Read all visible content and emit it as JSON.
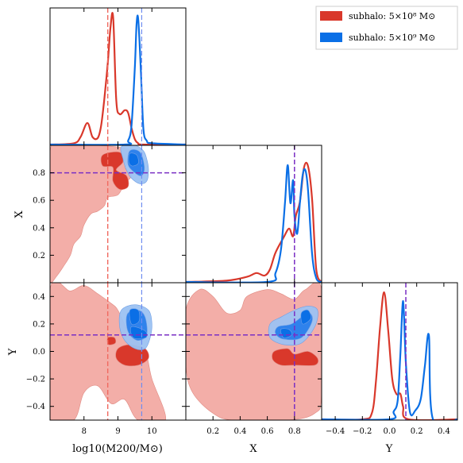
{
  "colors": {
    "red": "#d9382b",
    "red_light": "#f2aaa3",
    "red_dash": "#f06a60",
    "blue": "#0a6fe6",
    "blue_mid": "#2f82ec",
    "blue_light": "#9cc2f2",
    "blue_dash": "#6f8df0",
    "purple": "#7a2fc4"
  },
  "chart_data": {
    "type": "corner",
    "parameters": [
      {
        "key": "logM",
        "label": "log10(M200/M⊙)",
        "range": [
          7.0,
          11.0
        ],
        "ticks": [
          8,
          9,
          10
        ],
        "tick_labels": [
          "8",
          "9",
          "10"
        ]
      },
      {
        "key": "X",
        "label": "X",
        "range": [
          0.0,
          1.0
        ],
        "ticks": [
          0.2,
          0.4,
          0.6,
          0.8
        ],
        "tick_labels": [
          "0.2",
          "0.4",
          "0.6",
          "0.8"
        ]
      },
      {
        "key": "Y",
        "label": "Y",
        "range": [
          -0.5,
          0.5
        ],
        "ticks": [
          -0.4,
          -0.2,
          0.0,
          0.2,
          0.4
        ],
        "tick_labels": [
          "−0.4",
          "−0.2",
          "0.0",
          "0.2",
          "0.4"
        ]
      }
    ],
    "legend": {
      "placement": "top-right",
      "entries": [
        {
          "label": "subhalo: 5×10⁸ M⊙",
          "color": "#d9382b"
        },
        {
          "label": "subhalo: 5×10⁹ M⊙",
          "color": "#0a6fe6"
        }
      ]
    },
    "truths": {
      "red": {
        "logM": 8.7
      },
      "blue": {
        "logM": 9.7
      },
      "shared": {
        "X": 0.8,
        "Y": 0.12
      }
    },
    "marginals": {
      "logM": {
        "red": {
          "x": [
            7.0,
            7.7,
            7.9,
            8.1,
            8.25,
            8.4,
            8.5,
            8.6,
            8.7,
            8.78,
            8.86,
            8.95,
            9.05,
            9.2,
            9.3,
            9.4,
            9.5,
            9.6,
            9.75,
            11.0
          ],
          "y": [
            0.0,
            0.01,
            0.06,
            0.17,
            0.06,
            0.05,
            0.14,
            0.36,
            0.64,
            0.92,
            1.0,
            0.35,
            0.24,
            0.27,
            0.25,
            0.13,
            0.04,
            0.01,
            0.0,
            0.0
          ]
        },
        "blue": {
          "x": [
            7.0,
            9.2,
            9.3,
            9.4,
            9.5,
            9.55,
            9.6,
            9.68,
            9.75,
            9.85,
            10.0,
            11.0
          ],
          "y": [
            0.0,
            0.0,
            0.03,
            0.15,
            0.62,
            0.95,
            0.98,
            0.55,
            0.12,
            0.03,
            0.01,
            0.0
          ]
        }
      },
      "X": {
        "red": {
          "x": [
            0.0,
            0.3,
            0.45,
            0.52,
            0.58,
            0.62,
            0.66,
            0.72,
            0.76,
            0.79,
            0.81,
            0.84,
            0.87,
            0.9,
            0.93,
            0.96,
            1.0
          ],
          "y": [
            0.0,
            0.01,
            0.04,
            0.07,
            0.05,
            0.1,
            0.23,
            0.35,
            0.42,
            0.36,
            0.52,
            0.63,
            0.9,
            0.91,
            0.65,
            0.1,
            0.0
          ]
        },
        "blue": {
          "x": [
            0.0,
            0.6,
            0.66,
            0.7,
            0.73,
            0.75,
            0.77,
            0.79,
            0.8,
            0.82,
            0.84,
            0.86,
            0.88,
            0.9,
            0.93,
            0.96,
            1.0
          ],
          "y": [
            0.0,
            0.0,
            0.07,
            0.25,
            0.62,
            0.92,
            0.62,
            0.8,
            0.52,
            0.38,
            0.62,
            0.84,
            0.88,
            0.72,
            0.22,
            0.03,
            0.0
          ]
        }
      },
      "Y": {
        "red": {
          "x": [
            -0.5,
            -0.2,
            -0.13,
            -0.1,
            -0.07,
            -0.04,
            -0.01,
            0.02,
            0.05,
            0.08,
            0.1,
            0.14,
            0.5
          ],
          "y": [
            0.0,
            0.0,
            0.05,
            0.3,
            0.72,
            1.0,
            0.7,
            0.32,
            0.2,
            0.2,
            0.1,
            0.0,
            0.0
          ]
        },
        "blue": {
          "x": [
            -0.5,
            0.0,
            0.03,
            0.06,
            0.08,
            0.1,
            0.12,
            0.15,
            0.19,
            0.23,
            0.26,
            0.29,
            0.32,
            0.5
          ],
          "y": [
            0.0,
            0.0,
            0.06,
            0.15,
            0.52,
            0.93,
            0.45,
            0.06,
            0.07,
            0.16,
            0.42,
            0.66,
            0.0,
            0.0
          ]
        }
      }
    },
    "contours": {
      "logM_X": {
        "red_outer": [
          [
            7.0,
            0.15
          ],
          [
            7.0,
            0.95
          ],
          [
            7.4,
            1.0
          ],
          [
            8.3,
            1.0
          ],
          [
            9.2,
            0.98
          ],
          [
            9.6,
            0.92
          ],
          [
            9.4,
            0.88
          ],
          [
            9.2,
            0.84
          ],
          [
            9.4,
            0.78
          ],
          [
            9.2,
            0.72
          ],
          [
            9.0,
            0.64
          ],
          [
            8.7,
            0.62
          ],
          [
            8.6,
            0.56
          ],
          [
            8.4,
            0.52
          ],
          [
            8.2,
            0.5
          ],
          [
            8.0,
            0.42
          ],
          [
            7.9,
            0.34
          ],
          [
            7.7,
            0.28
          ],
          [
            7.6,
            0.2
          ],
          [
            7.4,
            0.12
          ],
          [
            7.2,
            0.05
          ],
          [
            7.0,
            0.0
          ]
        ],
        "red_inner": [
          [
            8.55,
            0.93
          ],
          [
            9.05,
            0.95
          ],
          [
            9.15,
            0.88
          ],
          [
            8.95,
            0.82
          ],
          [
            9.25,
            0.78
          ],
          [
            9.3,
            0.7
          ],
          [
            9.05,
            0.68
          ],
          [
            8.85,
            0.74
          ],
          [
            8.85,
            0.84
          ],
          [
            8.55,
            0.85
          ]
        ],
        "blue_outer": [
          [
            9.1,
            0.99
          ],
          [
            9.5,
            1.0
          ],
          [
            9.75,
            0.96
          ],
          [
            9.85,
            0.9
          ],
          [
            9.9,
            0.82
          ],
          [
            9.85,
            0.74
          ],
          [
            9.65,
            0.72
          ],
          [
            9.4,
            0.76
          ],
          [
            9.25,
            0.82
          ],
          [
            9.15,
            0.9
          ]
        ],
        "blue_mid": [
          [
            9.35,
            0.96
          ],
          [
            9.65,
            0.95
          ],
          [
            9.78,
            0.84
          ],
          [
            9.7,
            0.78
          ],
          [
            9.5,
            0.8
          ],
          [
            9.3,
            0.86
          ]
        ],
        "blue_inner": [
          [
            9.35,
            0.94
          ],
          [
            9.55,
            0.93
          ],
          [
            9.6,
            0.87
          ],
          [
            9.42,
            0.85
          ],
          [
            9.32,
            0.88
          ]
        ]
      },
      "logM_Y": {
        "red_outer": [
          [
            7.0,
            -0.5
          ],
          [
            7.0,
            0.45
          ],
          [
            7.6,
            0.44
          ],
          [
            8.0,
            0.48
          ],
          [
            8.4,
            0.42
          ],
          [
            8.8,
            0.35
          ],
          [
            9.0,
            0.3
          ],
          [
            9.3,
            0.15
          ],
          [
            9.8,
            0.0
          ],
          [
            10.0,
            -0.2
          ],
          [
            10.4,
            -0.5
          ],
          [
            9.6,
            -0.5
          ],
          [
            9.2,
            -0.35
          ],
          [
            8.8,
            -0.38
          ],
          [
            8.4,
            -0.25
          ],
          [
            8.0,
            -0.3
          ],
          [
            7.7,
            -0.5
          ]
        ],
        "red_inner": [
          [
            9.0,
            0.02
          ],
          [
            9.35,
            0.05
          ],
          [
            9.8,
            0.02
          ],
          [
            9.9,
            -0.05
          ],
          [
            9.6,
            -0.1
          ],
          [
            9.2,
            -0.1
          ],
          [
            8.95,
            -0.05
          ]
        ],
        "red_inner_small": [
          [
            8.7,
            0.1
          ],
          [
            8.9,
            0.1
          ],
          [
            8.92,
            0.06
          ],
          [
            8.72,
            0.05
          ]
        ],
        "blue_outer": [
          [
            9.1,
            0.3
          ],
          [
            9.5,
            0.34
          ],
          [
            9.9,
            0.3
          ],
          [
            10.0,
            0.2
          ],
          [
            9.95,
            0.1
          ],
          [
            9.8,
            0.02
          ],
          [
            9.5,
            0.02
          ],
          [
            9.2,
            0.08
          ],
          [
            9.05,
            0.18
          ]
        ],
        "blue_mid": [
          [
            9.3,
            0.28
          ],
          [
            9.6,
            0.3
          ],
          [
            9.8,
            0.25
          ],
          [
            9.85,
            0.12
          ],
          [
            9.6,
            0.08
          ],
          [
            9.35,
            0.12
          ],
          [
            9.25,
            0.2
          ]
        ],
        "blue_inner": [
          [
            9.35,
            0.3
          ],
          [
            9.6,
            0.3
          ],
          [
            9.62,
            0.22
          ],
          [
            9.4,
            0.2
          ]
        ],
        "blue_inner2": [
          [
            9.4,
            0.18
          ],
          [
            9.8,
            0.15
          ],
          [
            9.82,
            0.1
          ],
          [
            9.45,
            0.1
          ]
        ]
      },
      "X_Y": {
        "red_outer": [
          [
            0.0,
            0.3
          ],
          [
            0.0,
            -0.1
          ],
          [
            0.05,
            -0.3
          ],
          [
            0.2,
            -0.45
          ],
          [
            0.35,
            -0.5
          ],
          [
            0.75,
            -0.5
          ],
          [
            0.95,
            -0.45
          ],
          [
            1.0,
            -0.3
          ],
          [
            1.0,
            0.45
          ],
          [
            0.88,
            0.45
          ],
          [
            0.8,
            0.38
          ],
          [
            0.7,
            0.42
          ],
          [
            0.6,
            0.45
          ],
          [
            0.45,
            0.4
          ],
          [
            0.4,
            0.3
          ],
          [
            0.3,
            0.28
          ],
          [
            0.2,
            0.4
          ],
          [
            0.1,
            0.45
          ]
        ],
        "red_inner": [
          [
            0.65,
            0.0
          ],
          [
            0.75,
            0.02
          ],
          [
            0.8,
            -0.02
          ],
          [
            0.9,
            0.0
          ],
          [
            0.97,
            -0.05
          ],
          [
            0.95,
            -0.1
          ],
          [
            0.8,
            -0.1
          ],
          [
            0.7,
            -0.1
          ],
          [
            0.64,
            -0.06
          ]
        ],
        "blue_outer": [
          [
            0.62,
            0.2
          ],
          [
            0.7,
            0.25
          ],
          [
            0.8,
            0.3
          ],
          [
            0.9,
            0.33
          ],
          [
            0.97,
            0.3
          ],
          [
            0.95,
            0.18
          ],
          [
            0.85,
            0.06
          ],
          [
            0.72,
            0.05
          ],
          [
            0.62,
            0.1
          ]
        ],
        "blue_mid": [
          [
            0.68,
            0.18
          ],
          [
            0.78,
            0.2
          ],
          [
            0.9,
            0.28
          ],
          [
            0.93,
            0.22
          ],
          [
            0.85,
            0.1
          ],
          [
            0.72,
            0.09
          ],
          [
            0.66,
            0.13
          ]
        ],
        "blue_inner": [
          [
            0.7,
            0.16
          ],
          [
            0.76,
            0.16
          ],
          [
            0.78,
            0.12
          ],
          [
            0.72,
            0.1
          ]
        ],
        "blue_inner2": [
          [
            0.85,
            0.28
          ],
          [
            0.9,
            0.3
          ],
          [
            0.92,
            0.24
          ],
          [
            0.86,
            0.2
          ]
        ]
      }
    }
  }
}
